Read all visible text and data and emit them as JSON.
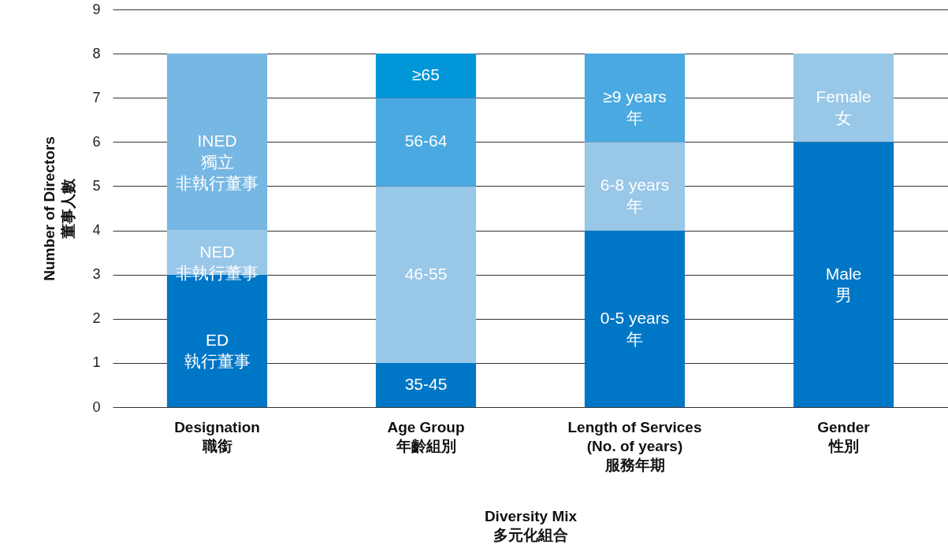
{
  "chart_data": {
    "type": "bar",
    "stacked": true,
    "xlabel": "Diversity Mix\n多元化組合",
    "ylabel": "Number of Directors\n董事人數",
    "categories": [
      "Designation\n職銜",
      "Age Group\n年齡組別",
      "Length of Services\n(No. of years)\n服務年期",
      "Gender\n性別"
    ],
    "ylim": [
      0,
      9
    ],
    "yticks": [
      0,
      1,
      2,
      3,
      4,
      5,
      6,
      7,
      8,
      9
    ],
    "grid": "y",
    "series": [
      {
        "name": "ED\n執行董事",
        "color": "#0076c6",
        "values": [
          3,
          null,
          null,
          null
        ]
      },
      {
        "name": "NED\n非執行董事",
        "color": "#98c7e8",
        "values": [
          1,
          null,
          null,
          null
        ]
      },
      {
        "name": "INED\n獨立非執行董事",
        "color": "#76b7e3",
        "values": [
          4,
          null,
          null,
          null
        ]
      },
      {
        "name": "35-45",
        "color": "#0076c6",
        "values": [
          null,
          1,
          null,
          null
        ]
      },
      {
        "name": "46-55",
        "color": "#98c7e8",
        "values": [
          null,
          4,
          null,
          null
        ]
      },
      {
        "name": "56-64",
        "color": "#4aa9e0",
        "values": [
          null,
          2,
          null,
          null
        ]
      },
      {
        "name": "≥65",
        "color": "#0096d8",
        "values": [
          null,
          1,
          null,
          null
        ]
      },
      {
        "name": "0-5 years\n年",
        "color": "#0076c6",
        "values": [
          null,
          null,
          4,
          null
        ]
      },
      {
        "name": "6-8 years\n年",
        "color": "#98c7e8",
        "values": [
          null,
          null,
          2,
          null
        ]
      },
      {
        "name": "≥9 years\n年",
        "color": "#4aa9e0",
        "values": [
          null,
          null,
          2,
          null
        ]
      },
      {
        "name": "Male\n男",
        "color": "#0076c6",
        "values": [
          null,
          null,
          null,
          6
        ]
      },
      {
        "name": "Female\n女",
        "color": "#98c7e8",
        "values": [
          null,
          null,
          null,
          2
        ]
      }
    ]
  }
}
